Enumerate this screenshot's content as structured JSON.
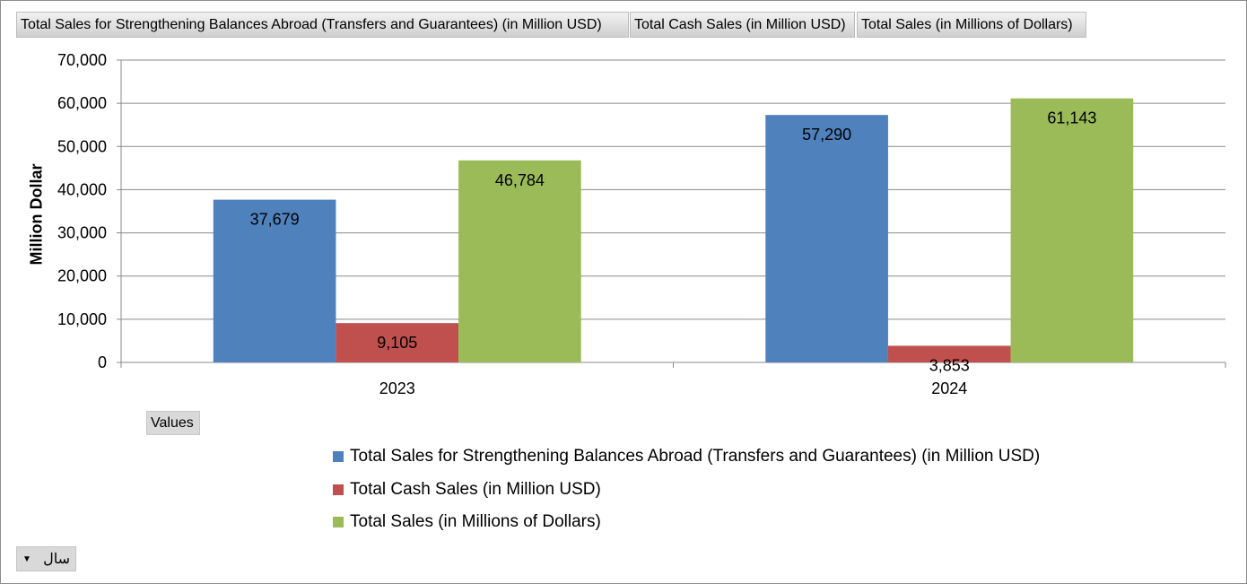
{
  "field_buttons": [
    "Total Sales for Strengthening Balances  Abroad (Transfers and Guarantees) (in Million USD)",
    "Total Cash Sales (in Million USD)",
    "Total Sales (in Millions of Dollars)"
  ],
  "values_button": "Values",
  "year_filter": {
    "label": "سال",
    "arrow_icon": "dropdown-arrow-icon"
  },
  "chart_data": {
    "type": "bar",
    "categories": [
      "2023",
      "2024"
    ],
    "series": [
      {
        "name": "Total Sales for Strengthening Balances Abroad (Transfers and Guarantees) (in Million USD)",
        "values": [
          37679,
          57290
        ],
        "labels": [
          "37,679",
          "57,290"
        ],
        "color": "#4f81bd"
      },
      {
        "name": "Total Cash Sales (in Million USD)",
        "values": [
          9105,
          3853
        ],
        "labels": [
          "9,105",
          "3,853"
        ],
        "color": "#c0504d"
      },
      {
        "name": "Total Sales (in Millions of Dollars)",
        "values": [
          46784,
          61143
        ],
        "labels": [
          "46,784",
          "61,143"
        ],
        "color": "#9bbb59"
      }
    ],
    "ylabel": "Million Dollar",
    "xlabel": "",
    "ylim": [
      0,
      70000
    ],
    "yticks": [
      "0",
      "10,000",
      "20,000",
      "30,000",
      "40,000",
      "50,000",
      "60,000",
      "70,000"
    ],
    "grid": true,
    "legend_position": "bottom"
  }
}
